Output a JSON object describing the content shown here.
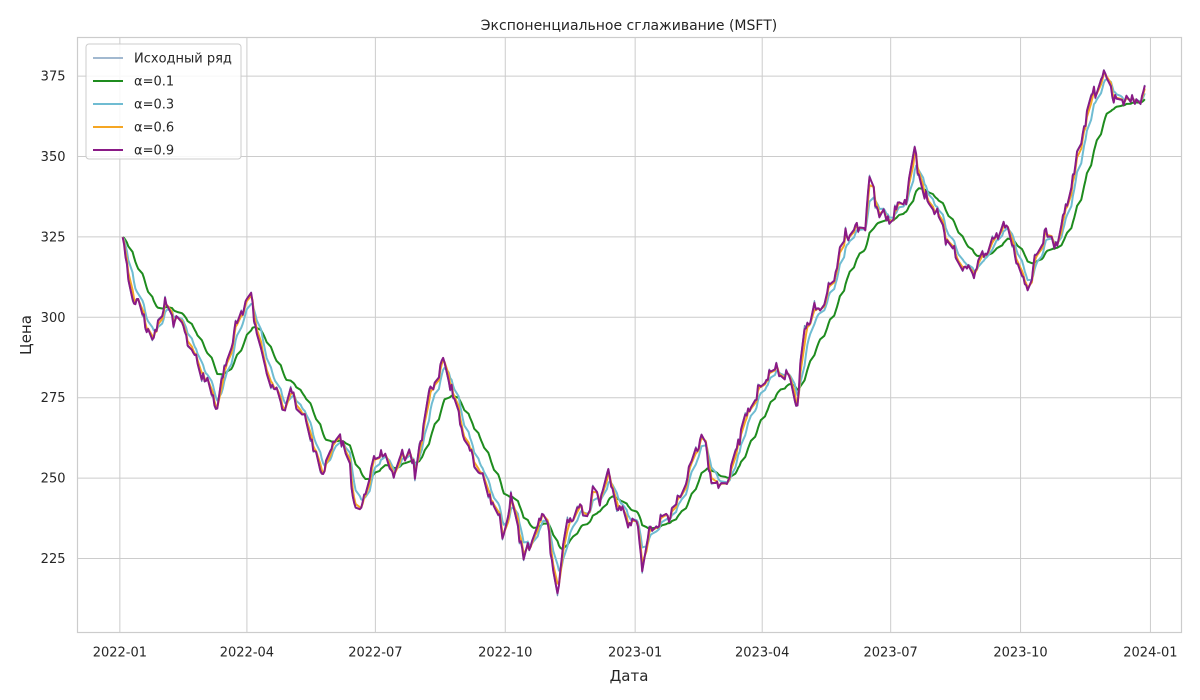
{
  "chart_data": {
    "type": "line",
    "title": "Экспоненциальное сглаживание (MSFT)",
    "xlabel": "Дата",
    "ylabel": "Цена",
    "x_range": [
      "2021-12-02",
      "2024-01-23"
    ],
    "ylim": [
      202,
      387
    ],
    "x_ticks": [
      {
        "date": "2022-01-01",
        "label": "2022-01"
      },
      {
        "date": "2022-04-01",
        "label": "2022-04"
      },
      {
        "date": "2022-07-01",
        "label": "2022-07"
      },
      {
        "date": "2022-10-01",
        "label": "2022-10"
      },
      {
        "date": "2023-01-01",
        "label": "2023-01"
      },
      {
        "date": "2023-04-01",
        "label": "2023-04"
      },
      {
        "date": "2023-07-01",
        "label": "2023-07"
      },
      {
        "date": "2023-10-01",
        "label": "2023-10"
      },
      {
        "date": "2024-01-01",
        "label": "2024-01"
      }
    ],
    "y_ticks": [
      225,
      250,
      275,
      300,
      325,
      350,
      375
    ],
    "grid": true,
    "legend_position": "top-left",
    "raw_anchors": [
      [
        "2022-01-03",
        325
      ],
      [
        "2022-01-06",
        314
      ],
      [
        "2022-01-10",
        306
      ],
      [
        "2022-01-14",
        305
      ],
      [
        "2022-01-18",
        300
      ],
      [
        "2022-01-21",
        296
      ],
      [
        "2022-01-25",
        291
      ],
      [
        "2022-01-28",
        300
      ],
      [
        "2022-02-02",
        304
      ],
      [
        "2022-02-08",
        300
      ],
      [
        "2022-02-15",
        297
      ],
      [
        "2022-02-23",
        287
      ],
      [
        "2022-03-07",
        277
      ],
      [
        "2022-03-11",
        271
      ],
      [
        "2022-03-16",
        285
      ],
      [
        "2022-03-29",
        303
      ],
      [
        "2022-04-04",
        306
      ],
      [
        "2022-04-07",
        298
      ],
      [
        "2022-04-13",
        285
      ],
      [
        "2022-04-19",
        279
      ],
      [
        "2022-04-26",
        272
      ],
      [
        "2022-05-03",
        277
      ],
      [
        "2022-05-10",
        270
      ],
      [
        "2022-05-17",
        262
      ],
      [
        "2022-05-24",
        251
      ],
      [
        "2022-05-30",
        258
      ],
      [
        "2022-06-06",
        264
      ],
      [
        "2022-06-13",
        252
      ],
      [
        "2022-06-16",
        243
      ],
      [
        "2022-06-20",
        238
      ],
      [
        "2022-06-25",
        249
      ],
      [
        "2022-07-01",
        256
      ],
      [
        "2022-07-05",
        259
      ],
      [
        "2022-07-11",
        252
      ],
      [
        "2022-07-18",
        255
      ],
      [
        "2022-07-25",
        260
      ],
      [
        "2022-07-29",
        250
      ],
      [
        "2022-08-02",
        262
      ],
      [
        "2022-08-08",
        276
      ],
      [
        "2022-08-15",
        282
      ],
      [
        "2022-08-18",
        286
      ],
      [
        "2022-08-24",
        278
      ],
      [
        "2022-08-30",
        267
      ],
      [
        "2022-09-06",
        258
      ],
      [
        "2022-09-13",
        252
      ],
      [
        "2022-09-20",
        244
      ],
      [
        "2022-09-26",
        238
      ],
      [
        "2022-09-30",
        232
      ],
      [
        "2022-10-05",
        243
      ],
      [
        "2022-10-10",
        235
      ],
      [
        "2022-10-14",
        225
      ],
      [
        "2022-10-21",
        232
      ],
      [
        "2022-10-26",
        236
      ],
      [
        "2022-10-30",
        242
      ],
      [
        "2022-11-03",
        222
      ],
      [
        "2022-11-07",
        214
      ],
      [
        "2022-11-10",
        226
      ],
      [
        "2022-11-14",
        236
      ],
      [
        "2022-11-21",
        241
      ],
      [
        "2022-11-28",
        238
      ],
      [
        "2022-12-02",
        246
      ],
      [
        "2022-12-07",
        243
      ],
      [
        "2022-12-13",
        252
      ],
      [
        "2022-12-19",
        242
      ],
      [
        "2022-12-27",
        236
      ],
      [
        "2023-01-03",
        235
      ],
      [
        "2023-01-06",
        222
      ],
      [
        "2023-01-11",
        233
      ],
      [
        "2023-01-18",
        236
      ],
      [
        "2023-01-24",
        238
      ],
      [
        "2023-01-31",
        243
      ],
      [
        "2023-02-06",
        250
      ],
      [
        "2023-02-13",
        258
      ],
      [
        "2023-02-17",
        263
      ],
      [
        "2023-02-24",
        250
      ],
      [
        "2023-03-02",
        247
      ],
      [
        "2023-03-09",
        251
      ],
      [
        "2023-03-15",
        262
      ],
      [
        "2023-03-22",
        271
      ],
      [
        "2023-03-29",
        277
      ],
      [
        "2023-04-05",
        282
      ],
      [
        "2023-04-12",
        284
      ],
      [
        "2023-04-19",
        282
      ],
      [
        "2023-04-26",
        272
      ],
      [
        "2023-04-30",
        296
      ],
      [
        "2023-05-08",
        302
      ],
      [
        "2023-05-15",
        305
      ],
      [
        "2023-05-22",
        313
      ],
      [
        "2023-05-30",
        326
      ],
      [
        "2023-06-06",
        327
      ],
      [
        "2023-06-13",
        330
      ],
      [
        "2023-06-16",
        342
      ],
      [
        "2023-06-22",
        333
      ],
      [
        "2023-06-28",
        330
      ],
      [
        "2023-07-06",
        334
      ],
      [
        "2023-07-12",
        337
      ],
      [
        "2023-07-18",
        352
      ],
      [
        "2023-07-24",
        338
      ],
      [
        "2023-07-31",
        335
      ],
      [
        "2023-08-07",
        328
      ],
      [
        "2023-08-14",
        320
      ],
      [
        "2023-08-21",
        316
      ],
      [
        "2023-08-28",
        314
      ],
      [
        "2023-09-05",
        319
      ],
      [
        "2023-09-12",
        324
      ],
      [
        "2023-09-19",
        330
      ],
      [
        "2023-09-26",
        322
      ],
      [
        "2023-10-01",
        312
      ],
      [
        "2023-10-06",
        310
      ],
      [
        "2023-10-12",
        318
      ],
      [
        "2023-10-18",
        327
      ],
      [
        "2023-10-25",
        322
      ],
      [
        "2023-10-30",
        328
      ],
      [
        "2023-11-03",
        336
      ],
      [
        "2023-11-08",
        346
      ],
      [
        "2023-11-13",
        356
      ],
      [
        "2023-11-17",
        364
      ],
      [
        "2023-11-22",
        370
      ],
      [
        "2023-11-27",
        374
      ],
      [
        "2023-11-30",
        375
      ],
      [
        "2023-12-05",
        370
      ],
      [
        "2023-12-10",
        364
      ],
      [
        "2023-12-15",
        370
      ],
      [
        "2023-12-20",
        366
      ],
      [
        "2023-12-28",
        371
      ]
    ],
    "series": [
      {
        "name": "Исходный ряд",
        "color": "#6b8fb5",
        "width": 1.3,
        "alpha": 1.0
      },
      {
        "name": "α=0.1",
        "color": "#1e8c1e",
        "width": 2.0,
        "alpha": 0.1
      },
      {
        "name": "α=0.3",
        "color": "#6fbcd2",
        "width": 2.0,
        "alpha": 0.3
      },
      {
        "name": "α=0.6",
        "color": "#f5a623",
        "width": 2.0,
        "alpha": 0.6
      },
      {
        "name": "α=0.9",
        "color": "#8a1a86",
        "width": 2.0,
        "alpha": 0.9
      }
    ]
  }
}
